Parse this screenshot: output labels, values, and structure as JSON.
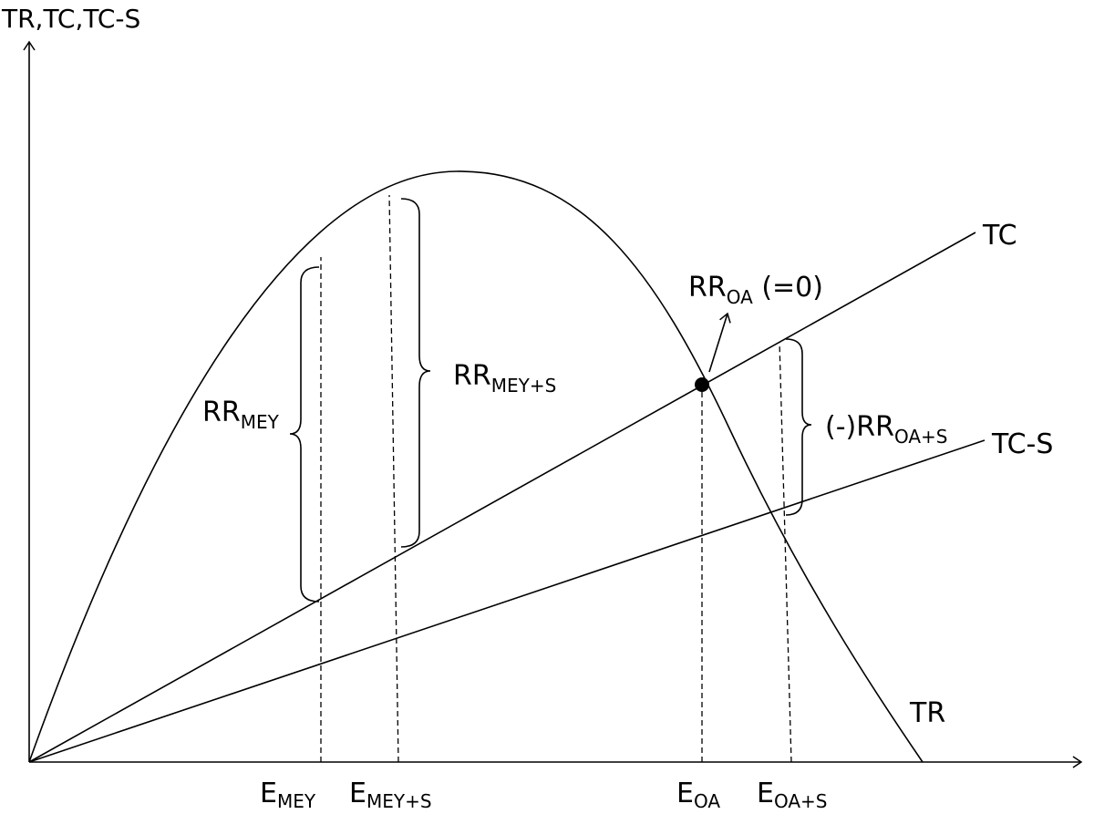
{
  "y_axis_label": "TR,TC,TC-S",
  "curves": {
    "tc": "TC",
    "tc_s": "TC-S",
    "tr": "TR"
  },
  "annotations": {
    "rr_mey": {
      "main": "RR",
      "sub": "MEY"
    },
    "rr_mey_s": {
      "main": "RR",
      "sub": "MEY+S"
    },
    "rr_oa": {
      "main": "RR",
      "sub": "OA",
      "suffix": " (=0)"
    },
    "rr_oa_s": {
      "main": "(-)RR",
      "sub": "OA+S"
    }
  },
  "x_labels": [
    {
      "main": "E",
      "sub": "MEY"
    },
    {
      "main": "E",
      "sub": "MEY+S"
    },
    {
      "main": "E",
      "sub": "OA"
    },
    {
      "main": "E",
      "sub": "OA+S"
    }
  ]
}
